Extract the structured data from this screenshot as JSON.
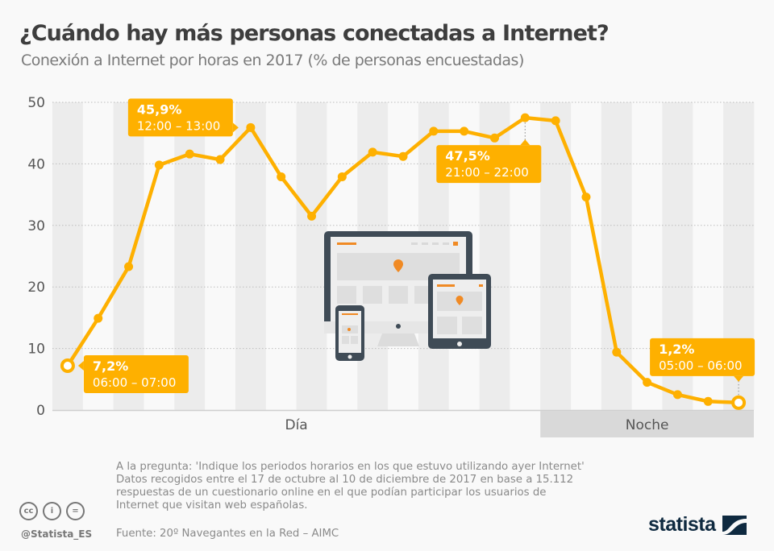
{
  "header": {
    "title": "¿Cuándo hay más personas conectadas a Internet?",
    "subtitle": "Conexión a Internet por horas en 2017 (% de personas encuestadas)"
  },
  "chart_data": {
    "type": "line",
    "title": "¿Cuándo hay más personas conectadas a Internet?",
    "subtitle": "Conexión a Internet por horas en 2017 (% de personas encuestadas)",
    "xlabel": "",
    "ylabel": "",
    "ylim": [
      0,
      50
    ],
    "yticks": [
      "0",
      "10",
      "20",
      "30",
      "40",
      "50"
    ],
    "ytick_values": [
      0,
      10,
      20,
      30,
      40,
      50
    ],
    "grid": true,
    "color": "#FEB000",
    "series": [
      {
        "name": "% de personas encuestadas",
        "values": [
          7.2,
          14.9,
          23.3,
          39.8,
          41.6,
          40.7,
          45.9,
          37.9,
          31.5,
          37.9,
          41.9,
          41.2,
          45.3,
          45.3,
          44.2,
          47.5,
          47.0,
          34.6,
          9.4,
          4.5,
          2.5,
          1.4,
          1.2
        ]
      }
    ],
    "annotations": [
      {
        "index": 0,
        "value": "7,2%",
        "label": "06:00 – 07:00",
        "hollow": true
      },
      {
        "index": 6,
        "value": "45,9%",
        "label": "12:00 – 13:00",
        "hollow": false
      },
      {
        "index": 15,
        "value": "47,5%",
        "label": "21:00 – 22:00",
        "hollow": false
      },
      {
        "index": 22,
        "value": "1,2%",
        "label": "05:00 – 06:00",
        "hollow": true
      }
    ],
    "periods": [
      {
        "label": "Día",
        "from_index": 0,
        "to_index": 15
      },
      {
        "label": "Noche",
        "from_index": 16,
        "to_index": 22
      }
    ]
  },
  "footer": {
    "notes": [
      "A la pregunta: 'Indique los periodos horarios en los que estuvo utilizando ayer Internet'",
      "Datos recogidos entre el 17 de octubre al 10 de diciembre de 2017 en base a 15.112",
      "respuestas de un cuestionario online en el que podían participar los usuarios de",
      "Internet que visitan web españolas."
    ],
    "source": "Fuente: 20º Navegantes en la Red – AIMC",
    "handle": "@Statista_ES",
    "license_icons": [
      "cc",
      "by",
      "nd"
    ],
    "license_glyphs": [
      "cc",
      "i",
      "="
    ],
    "logo": "statista"
  }
}
